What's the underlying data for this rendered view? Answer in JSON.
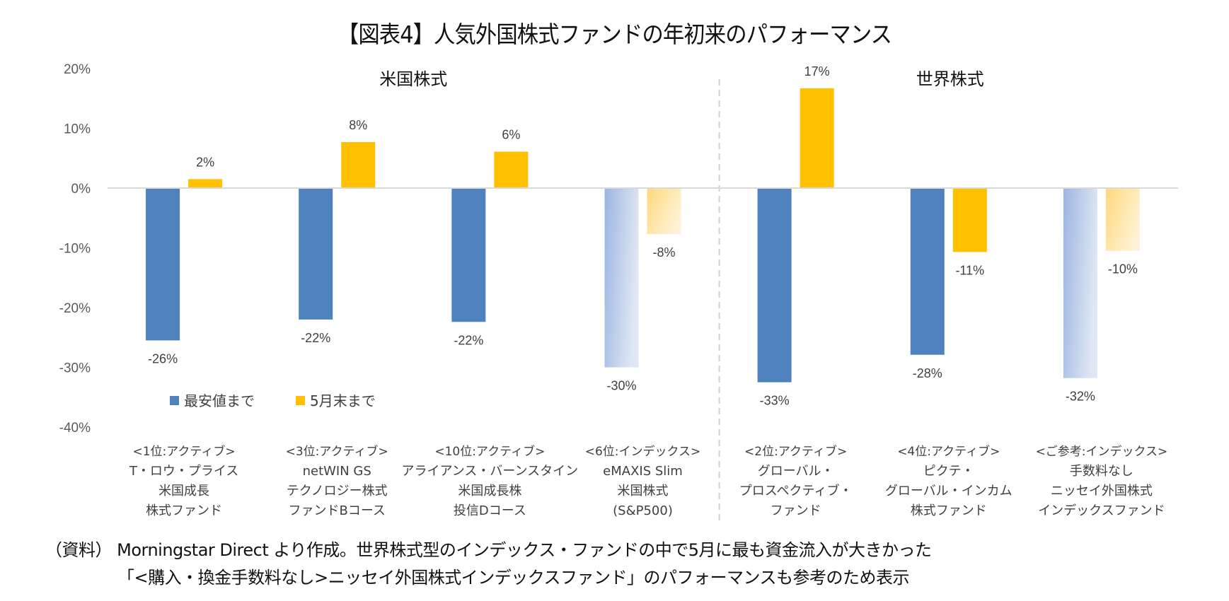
{
  "chart_data": {
    "type": "bar",
    "title": "【図表4】人気外国株式ファンドの年初来のパフォーマンス",
    "xlabel": "",
    "ylabel": "",
    "ylim": [
      -0.4,
      0.2
    ],
    "yticks": [
      0.2,
      0.1,
      0.0,
      -0.1,
      -0.2,
      -0.3,
      -0.4
    ],
    "ytick_labels": [
      "20%",
      "10%",
      "0%",
      "-10%",
      "-20%",
      "-30%",
      "-40%"
    ],
    "grid": false,
    "legend_position": "lower-left",
    "sections": [
      {
        "label": "米国株式",
        "categories": [
          0,
          1,
          2,
          3
        ]
      },
      {
        "label": "世界株式",
        "categories": [
          4,
          5,
          6
        ]
      }
    ],
    "categories": [
      {
        "lines": [
          "<1位:アクティブ>",
          "T・ロウ・プライス",
          "米国成長",
          "株式ファンド"
        ],
        "highlight": false
      },
      {
        "lines": [
          "<3位:アクティブ>",
          "netWIN GS",
          "テクノロジー株式",
          "ファンドBコース"
        ],
        "highlight": false
      },
      {
        "lines": [
          "<10位:アクティブ>",
          "アライアンス・バーンスタイン",
          "米国成長株",
          "投信Dコース"
        ],
        "highlight": false
      },
      {
        "lines": [
          "<6位:インデックス>",
          "eMAXIS Slim",
          "米国株式",
          "(S&P500)"
        ],
        "highlight": true
      },
      {
        "lines": [
          "<2位:アクティブ>",
          "グローバル・",
          "プロスペクティブ・",
          "ファンド"
        ],
        "highlight": false
      },
      {
        "lines": [
          "<4位:アクティブ>",
          "ピクテ・",
          "グローバル・インカム",
          "株式ファンド"
        ],
        "highlight": false
      },
      {
        "lines": [
          "<ご参考:インデックス>",
          "手数料なし",
          "ニッセイ外国株式",
          "インデックスファンド"
        ],
        "highlight": true
      }
    ],
    "series": [
      {
        "name": "最安値まで",
        "color": "#4f81bd",
        "faded_from": "#9db5e2",
        "faded_to": "#dfe7f4",
        "values": [
          -0.255,
          -0.22,
          -0.224,
          -0.3,
          -0.325,
          -0.279,
          -0.318
        ],
        "labels": [
          "-26%",
          "-22%",
          "-22%",
          "-30%",
          "-33%",
          "-28%",
          "-32%"
        ]
      },
      {
        "name": "5月末まで",
        "color": "#ffc000",
        "faded_from": "#ffd97a",
        "faded_to": "#fff2d6",
        "values": [
          0.015,
          0.077,
          0.061,
          -0.077,
          0.167,
          -0.107,
          -0.105
        ],
        "labels": [
          "2%",
          "8%",
          "6%",
          "-8%",
          "17%",
          "-11%",
          "-10%"
        ]
      }
    ]
  },
  "footer": {
    "line1": "（資料） Morningstar Direct より作成。世界株式型のインデックス・ファンドの中で5月に最も資金流入が大きかった",
    "line2": "「<購入・換金手数料なし>ニッセイ外国株式インデックスファンド」のパフォーマンスも参考のため表示"
  }
}
